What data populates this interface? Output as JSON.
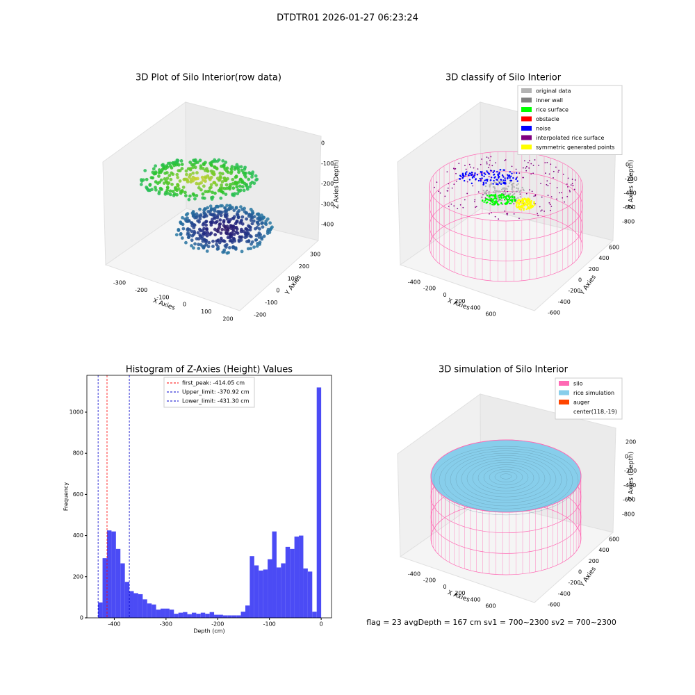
{
  "title": "DTDTR01 2026-01-27 06:23:24",
  "footer": "flag = 23  avgDepth = 167 cm  sv1 = 700~2300  sv2 = 700~2300",
  "chart_data": [
    {
      "type": "scatter3d",
      "title": "3D Plot of Silo Interior(row data)",
      "xlabel": "X Axies",
      "ylabel": "Y Axies",
      "zlabel": "Z Axies (Depth)",
      "xticks": [
        -300,
        -200,
        -100,
        0,
        100,
        200
      ],
      "yticks": [
        -200,
        -100,
        0,
        100,
        200,
        300
      ],
      "zticks": [
        -400,
        -300,
        -200,
        -100,
        0
      ]
    },
    {
      "type": "scatter3d",
      "title": "3D classify of Silo Interior",
      "xlabel": "X Axies",
      "ylabel": "Y Axies",
      "zlabel": "Z Axies (Depth)",
      "xticks": [
        -400,
        -200,
        0,
        200,
        400,
        600
      ],
      "yticks": [
        -600,
        -400,
        -200,
        0,
        200,
        400,
        600
      ],
      "zticks": [
        -800,
        -600,
        -400,
        -200,
        0
      ],
      "legend": [
        {
          "name": "original data",
          "color": "#b3b3b3"
        },
        {
          "name": "inner wall",
          "color": "#808080"
        },
        {
          "name": "rice surface",
          "color": "#00ff00"
        },
        {
          "name": "obstacle",
          "color": "#ff0000"
        },
        {
          "name": "noise",
          "color": "#0000ff"
        },
        {
          "name": "interpolated rice surface",
          "color": "#800080"
        },
        {
          "name": "symmetric generated points",
          "color": "#ffff00"
        }
      ]
    },
    {
      "type": "histogram",
      "title": "Histogram of Z-Axies (Height) Values",
      "xlabel": "Depth (cm)",
      "ylabel": "Frequency",
      "color": "#4b4bf5",
      "bins": [
        -431.3,
        -422.67,
        -414.05,
        -405.42,
        -396.8,
        -388.17,
        -379.54,
        -370.92,
        -362.29,
        -353.66,
        -345.04,
        -336.41,
        -327.78,
        -319.16,
        -310.53,
        -301.91,
        -293.28,
        -284.65,
        -276.03,
        -267.4,
        -258.77,
        -250.15,
        -241.52,
        -232.89,
        -224.27,
        -215.64,
        -207.02,
        -198.39,
        -189.76,
        -181.14,
        -172.51,
        -163.88,
        -155.26,
        -146.63,
        -138.0,
        -129.38,
        -120.75,
        -112.13,
        -103.5,
        -94.87,
        -86.25,
        -77.62,
        -68.99,
        -60.37,
        -51.74,
        -43.12,
        -34.49,
        -25.86,
        -17.24,
        -8.61,
        0
      ],
      "values": [
        75,
        290,
        425,
        420,
        335,
        265,
        175,
        130,
        120,
        115,
        90,
        70,
        65,
        40,
        45,
        45,
        40,
        20,
        25,
        28,
        18,
        25,
        20,
        25,
        20,
        28,
        15,
        15,
        12,
        12,
        12,
        12,
        30,
        60,
        300,
        255,
        230,
        235,
        285,
        420,
        245,
        265,
        345,
        335,
        395,
        400,
        240,
        225,
        30,
        1120
      ],
      "xlim": [
        -453,
        20
      ],
      "ylim": [
        0,
        1179
      ],
      "xticks": [
        -400,
        -300,
        -200,
        -100,
        0
      ],
      "yticks": [
        0,
        200,
        400,
        600,
        800,
        1000
      ],
      "vlines": [
        {
          "name": "first_peak: -414.05 cm",
          "value": -414.05,
          "color": "#ff0000"
        },
        {
          "name": "Upper_limit: -370.92 cm",
          "value": -370.92,
          "color": "#0000cc"
        },
        {
          "name": "Lower_limit: -431.30 cm",
          "value": -431.3,
          "color": "#0000cc"
        }
      ]
    },
    {
      "type": "surface3d",
      "title": "3D simulation of Silo Interior",
      "xlabel": "X Axies",
      "ylabel": "Y Axies",
      "zlabel": "Z Axies (Depth)",
      "xticks": [
        -400,
        -200,
        0,
        200,
        400,
        600
      ],
      "yticks": [
        -600,
        -400,
        -200,
        0,
        200,
        400,
        600
      ],
      "zticks": [
        -800,
        -600,
        -400,
        -200,
        0,
        200
      ],
      "legend": [
        {
          "name": "silo",
          "color": "#ff69b4"
        },
        {
          "name": "rice simulation",
          "color": "#87ceeb"
        },
        {
          "name": "auger",
          "color": "#ff4500"
        },
        {
          "name": "center(118,-19)",
          "color": "#ffffff"
        }
      ]
    }
  ]
}
